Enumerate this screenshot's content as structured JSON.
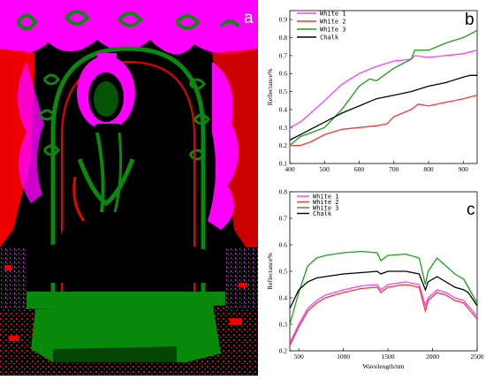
{
  "panels": {
    "a": {
      "label": "a"
    },
    "b": {
      "label": "b"
    },
    "c": {
      "label": "c"
    }
  },
  "colors": {
    "white1": "#ff3cff",
    "white2": "#ff3333",
    "white3": "#1aa01a",
    "chalk": "#000000",
    "mural_magenta": "#ff00ff",
    "mural_red": "#ff0000",
    "mural_green": "#0a8a0a",
    "mural_black": "#000000"
  },
  "chart_data": [
    {
      "type": "line",
      "panel": "b",
      "ylabel": "Reflectance%",
      "xlabel": "",
      "xlim": [
        400,
        940
      ],
      "ylim": [
        0.1,
        0.95
      ],
      "xticks": [
        400,
        500,
        600,
        700,
        800,
        900
      ],
      "yticks": [
        0.1,
        0.2,
        0.3,
        0.4,
        0.5,
        0.6,
        0.7,
        0.8,
        0.9
      ],
      "ytick_labels": [
        "0.1",
        "0.2",
        "0.3",
        "0.4",
        "0.5",
        "0.6",
        "0.7",
        "0.8",
        "0.9"
      ],
      "legend_position": "top-left",
      "series": [
        {
          "name": "White 1",
          "color": "#ff3cff",
          "x": [
            400,
            430,
            460,
            500,
            550,
            600,
            650,
            700,
            750,
            760,
            800,
            850,
            900,
            940
          ],
          "y": [
            0.3,
            0.33,
            0.38,
            0.45,
            0.54,
            0.6,
            0.64,
            0.67,
            0.68,
            0.7,
            0.69,
            0.7,
            0.71,
            0.73
          ]
        },
        {
          "name": "White 2",
          "color": "#ff3333",
          "x": [
            400,
            430,
            460,
            500,
            550,
            600,
            650,
            680,
            700,
            750,
            770,
            800,
            850,
            900,
            940
          ],
          "y": [
            0.2,
            0.2,
            0.22,
            0.26,
            0.29,
            0.3,
            0.31,
            0.32,
            0.36,
            0.4,
            0.43,
            0.42,
            0.44,
            0.46,
            0.48
          ]
        },
        {
          "name": "White 3",
          "color": "#1aa01a",
          "x": [
            400,
            430,
            460,
            500,
            550,
            600,
            630,
            650,
            700,
            750,
            760,
            800,
            850,
            900,
            920,
            940
          ],
          "y": [
            0.2,
            0.25,
            0.27,
            0.3,
            0.4,
            0.53,
            0.57,
            0.56,
            0.63,
            0.68,
            0.73,
            0.73,
            0.77,
            0.8,
            0.82,
            0.84
          ]
        },
        {
          "name": "Chalk",
          "color": "#000000",
          "x": [
            400,
            430,
            460,
            500,
            550,
            600,
            650,
            700,
            750,
            800,
            850,
            900,
            920,
            940
          ],
          "y": [
            0.23,
            0.26,
            0.29,
            0.33,
            0.38,
            0.42,
            0.46,
            0.48,
            0.5,
            0.53,
            0.55,
            0.58,
            0.59,
            0.59
          ]
        }
      ]
    },
    {
      "type": "line",
      "panel": "c",
      "ylabel": "Reflectance%",
      "xlabel": "Wavelength/nm",
      "xlim": [
        400,
        2500
      ],
      "ylim": [
        0.2,
        0.8
      ],
      "xticks": [
        500,
        1000,
        1500,
        2000,
        2500
      ],
      "yticks": [
        0.2,
        0.3,
        0.4,
        0.5,
        0.6,
        0.7,
        0.8
      ],
      "ytick_labels": [
        "0.2",
        "0.3",
        "0.4",
        "0.5",
        "0.6",
        "0.7",
        "0.8"
      ],
      "legend_position": "top-left",
      "series": [
        {
          "name": "White 1",
          "color": "#ff3cff",
          "x": [
            400,
            500,
            600,
            700,
            800,
            1000,
            1200,
            1380,
            1420,
            1500,
            1700,
            1850,
            1920,
            1950,
            2050,
            2150,
            2250,
            2350,
            2400,
            2500
          ],
          "y": [
            0.23,
            0.3,
            0.36,
            0.39,
            0.41,
            0.43,
            0.445,
            0.45,
            0.43,
            0.45,
            0.46,
            0.45,
            0.37,
            0.4,
            0.43,
            0.42,
            0.4,
            0.39,
            0.37,
            0.33
          ]
        },
        {
          "name": "White 2",
          "color": "#ff3333",
          "x": [
            400,
            500,
            600,
            700,
            800,
            1000,
            1200,
            1380,
            1420,
            1500,
            1700,
            1850,
            1920,
            1950,
            2050,
            2150,
            2250,
            2350,
            2400,
            2500
          ],
          "y": [
            0.22,
            0.29,
            0.35,
            0.38,
            0.4,
            0.42,
            0.435,
            0.44,
            0.42,
            0.44,
            0.45,
            0.44,
            0.35,
            0.39,
            0.42,
            0.41,
            0.39,
            0.38,
            0.36,
            0.32
          ]
        },
        {
          "name": "White 3",
          "color": "#1aa01a",
          "x": [
            400,
            500,
            600,
            700,
            800,
            1000,
            1200,
            1380,
            1420,
            1500,
            1700,
            1850,
            1920,
            1950,
            2050,
            2150,
            2250,
            2350,
            2400,
            2500
          ],
          "y": [
            0.3,
            0.42,
            0.52,
            0.55,
            0.56,
            0.57,
            0.575,
            0.57,
            0.54,
            0.56,
            0.565,
            0.55,
            0.45,
            0.5,
            0.55,
            0.52,
            0.49,
            0.47,
            0.44,
            0.38
          ]
        },
        {
          "name": "Chalk",
          "color": "#000000",
          "x": [
            400,
            500,
            600,
            700,
            800,
            1000,
            1200,
            1380,
            1420,
            1500,
            1700,
            1850,
            1920,
            1950,
            2050,
            2150,
            2250,
            2350,
            2400,
            2500
          ],
          "y": [
            0.36,
            0.43,
            0.46,
            0.475,
            0.48,
            0.49,
            0.495,
            0.5,
            0.49,
            0.5,
            0.5,
            0.49,
            0.43,
            0.46,
            0.48,
            0.46,
            0.44,
            0.43,
            0.42,
            0.37
          ]
        }
      ]
    }
  ]
}
